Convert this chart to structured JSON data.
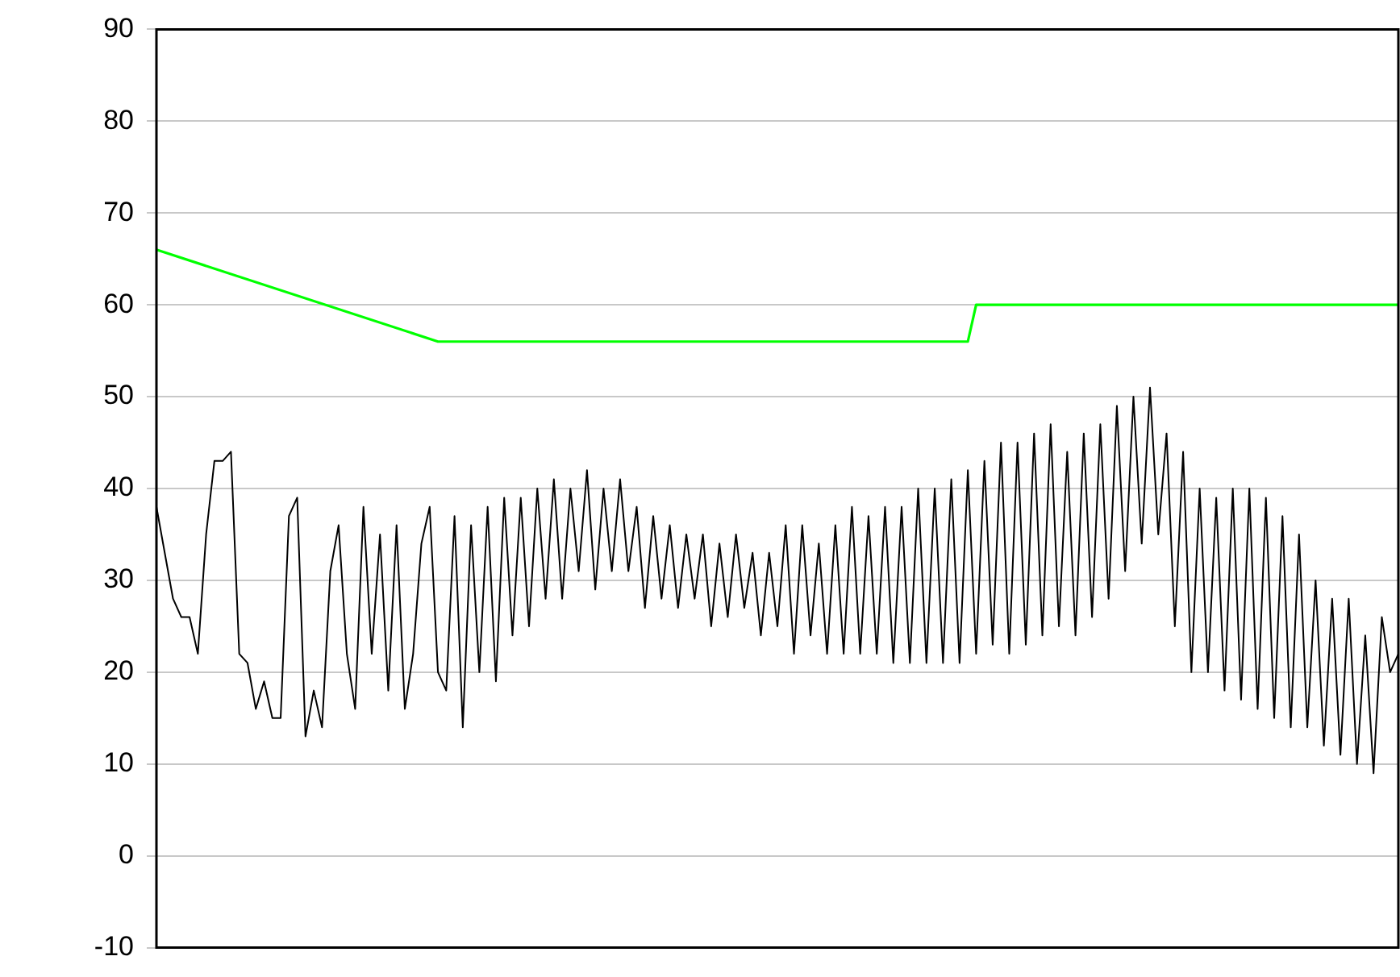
{
  "chart_data": {
    "type": "line",
    "categories": [
      null,
      null,
      null,
      null,
      null,
      null,
      null,
      null,
      null,
      null,
      null,
      null,
      null,
      null,
      null,
      null,
      null,
      null,
      null,
      null,
      null,
      null,
      null,
      null,
      null,
      null,
      null,
      null,
      null,
      null,
      null,
      null,
      null,
      null,
      null,
      null,
      null,
      null,
      null,
      null,
      null,
      null,
      null,
      null,
      null,
      null,
      null,
      null,
      null,
      null,
      null,
      null,
      null,
      null,
      null,
      null,
      null,
      null,
      null,
      null,
      null,
      null,
      null,
      null,
      null,
      null,
      null,
      null,
      null,
      null,
      null,
      null,
      null,
      null,
      null,
      null,
      null,
      null,
      null,
      null,
      null,
      null,
      null,
      null,
      null,
      null,
      null,
      null,
      null,
      null,
      null,
      null,
      null,
      null,
      null,
      null,
      null,
      null,
      null,
      null,
      null,
      null,
      null,
      null,
      null,
      null,
      null,
      null,
      null,
      null,
      null,
      null,
      null,
      null,
      null,
      null,
      null,
      null,
      null,
      null,
      null,
      null,
      null,
      null,
      null,
      null,
      null,
      null,
      null,
      null,
      null,
      null,
      null,
      null,
      null,
      null,
      null,
      null,
      null,
      null,
      null,
      null,
      null,
      null,
      null,
      null,
      null,
      null,
      null,
      null,
      null
    ],
    "series": [
      {
        "color": "#000000",
        "values": [
          38,
          33,
          28,
          26,
          26,
          22,
          35,
          43,
          43,
          44,
          22,
          21,
          16,
          19,
          15,
          15,
          37,
          39,
          13,
          18,
          14,
          31,
          36,
          22,
          16,
          38,
          22,
          35,
          18,
          36,
          16,
          22,
          34,
          38,
          20,
          18,
          37,
          14,
          36,
          20,
          38,
          19,
          39,
          24,
          39,
          25,
          40,
          28,
          41,
          28,
          40,
          31,
          42,
          29,
          40,
          31,
          41,
          31,
          38,
          27,
          37,
          28,
          36,
          27,
          35,
          28,
          35,
          25,
          34,
          26,
          35,
          27,
          33,
          24,
          33,
          25,
          36,
          22,
          36,
          24,
          34,
          22,
          36,
          22,
          38,
          22,
          37,
          22,
          38,
          21,
          38,
          21,
          40,
          21,
          40,
          21,
          41,
          21,
          42,
          22,
          43,
          23,
          45,
          22,
          45,
          23,
          46,
          24,
          47,
          25,
          44,
          24,
          46,
          26,
          47,
          28,
          49,
          31,
          50,
          34,
          51,
          35,
          46,
          25,
          44,
          20,
          40,
          20,
          39,
          18,
          40,
          17,
          40,
          16,
          39,
          15,
          37,
          14,
          35,
          14,
          30,
          12,
          28,
          11,
          28,
          10,
          24,
          9,
          26,
          20,
          22
        ]
      },
      {
        "color": "#00ff00",
        "values": [
          66,
          null,
          null,
          null,
          null,
          null,
          null,
          null,
          null,
          null,
          null,
          null,
          null,
          null,
          null,
          null,
          null,
          null,
          null,
          null,
          null,
          null,
          null,
          null,
          null,
          null,
          null,
          null,
          null,
          null,
          null,
          null,
          null,
          null,
          56,
          null,
          null,
          null,
          null,
          null,
          null,
          null,
          null,
          null,
          null,
          null,
          null,
          null,
          null,
          null,
          null,
          null,
          null,
          null,
          null,
          null,
          null,
          null,
          null,
          null,
          null,
          null,
          null,
          null,
          null,
          null,
          null,
          null,
          null,
          null,
          null,
          null,
          null,
          null,
          null,
          null,
          null,
          null,
          null,
          null,
          null,
          null,
          null,
          null,
          null,
          null,
          null,
          null,
          null,
          null,
          null,
          null,
          null,
          null,
          null,
          null,
          null,
          null,
          56,
          60,
          null,
          null,
          null,
          null,
          null,
          null,
          null,
          null,
          null,
          null,
          null,
          null,
          null,
          null,
          null,
          null,
          null,
          null,
          null,
          null,
          null,
          null,
          null,
          null,
          null,
          null,
          null,
          null,
          null,
          null,
          null,
          null,
          null,
          null,
          null,
          null,
          null,
          null,
          null,
          null,
          null,
          null,
          null,
          null,
          null,
          null,
          null,
          null,
          null,
          null,
          60
        ]
      }
    ],
    "ylim": [
      -10,
      90
    ],
    "yticks": [
      -10,
      0,
      10,
      20,
      30,
      40,
      50,
      60,
      70,
      80,
      90
    ],
    "grid": "y",
    "tick_labels": "y",
    "marker": "none",
    "line_style": "solid",
    "legend": false
  }
}
